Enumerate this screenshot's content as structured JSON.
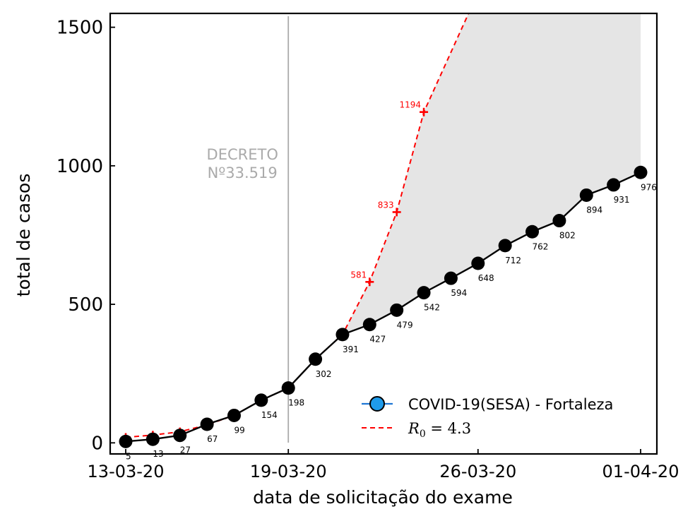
{
  "chart_data": {
    "type": "line",
    "xlabel": "data de solicitação do exame",
    "ylabel": "total de casos",
    "ylim": [
      -40,
      1550
    ],
    "x_tick_labels": [
      "13-03-20",
      "19-03-20",
      "26-03-20",
      "01-04-20"
    ],
    "x_tick_days": [
      0,
      6,
      13,
      19
    ],
    "y_ticks": [
      0,
      500,
      1000,
      1500
    ],
    "grid": false,
    "legend_position": "lower-right",
    "series": [
      {
        "name": "COVID-19(SESA) - Fortaleza",
        "color": "#000000",
        "marker_face_legend": "#1f9bea",
        "day": [
          0,
          1,
          2,
          3,
          4,
          5,
          6,
          7,
          8,
          9,
          10,
          11,
          12,
          13,
          14,
          15,
          16,
          17,
          18,
          19
        ],
        "values": [
          5,
          13,
          27,
          67,
          99,
          154,
          198,
          302,
          391,
          427,
          479,
          542,
          594,
          648,
          712,
          762,
          802,
          894,
          931,
          976
        ],
        "labels": [
          "5",
          "13",
          "27",
          "67",
          "99",
          "154",
          "198",
          "302",
          "391",
          "427",
          "479",
          "542",
          "594",
          "648",
          "712",
          "762",
          "802",
          "894",
          "931",
          "976"
        ]
      },
      {
        "name": "R_0 = 4.3",
        "legend_prefix": "R",
        "legend_sub": "0",
        "legend_suffix": " = 4.3",
        "color": "#ff0000",
        "day": [
          0,
          1,
          2,
          3,
          4,
          5,
          6,
          7,
          8,
          9,
          10,
          11,
          12.65
        ],
        "values": [
          20,
          28,
          40,
          65,
          99,
          154,
          198,
          302,
          391,
          581,
          833,
          1194,
          1550
        ],
        "labeled_points": [
          {
            "day": 9,
            "value": 581,
            "label": "581"
          },
          {
            "day": 10,
            "value": 833,
            "label": "833"
          },
          {
            "day": 11,
            "value": 1194,
            "label": "1194"
          }
        ]
      }
    ],
    "annotation": {
      "day": 6,
      "lines": [
        "DECRETO",
        "Nº33.519"
      ],
      "color": "#aaaaaa"
    },
    "shaded_region_color": "#e5e5e5"
  }
}
